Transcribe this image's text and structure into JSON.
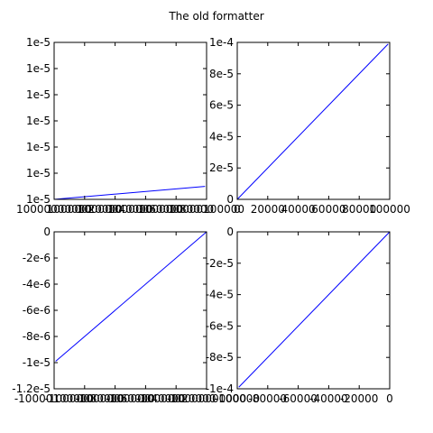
{
  "title": "The old formatter",
  "chart_data": [
    {
      "type": "line",
      "color": "#0000ff",
      "x": [
        10000000000,
        10000099000
      ],
      "values": [
        1e-05,
        1.0000099e-05
      ],
      "xlim": [
        10000000000,
        10000100000
      ],
      "xticks": [
        10000000000,
        10000020000,
        10000040000,
        10000060000,
        10000080000,
        10000100000
      ],
      "ylim": [
        1e-05,
        1.00012e-05
      ],
      "yticks": [
        {
          "value": 1e-05,
          "label": "1e-5"
        },
        {
          "value": 1.00002e-05,
          "label": "1e-5"
        },
        {
          "value": 1.00004e-05,
          "label": "1e-5"
        },
        {
          "value": 1.00006e-05,
          "label": "1e-5"
        },
        {
          "value": 1.00008e-05,
          "label": "1e-5"
        },
        {
          "value": 1.0001e-05,
          "label": "1e-5"
        },
        {
          "value": 1.00012e-05,
          "label": "1e-5"
        }
      ]
    },
    {
      "type": "line",
      "color": "#0000ff",
      "x": [
        0,
        99000
      ],
      "values": [
        0,
        9.9e-05
      ],
      "xlim": [
        0,
        100000
      ],
      "xticks": [
        0,
        20000,
        40000,
        60000,
        80000,
        100000
      ],
      "ylim": [
        0,
        0.0001
      ],
      "yticks": [
        0,
        {
          "value": 2e-05,
          "label": "2e-5"
        },
        {
          "value": 4e-05,
          "label": "4e-5"
        },
        {
          "value": 6e-05,
          "label": "6e-5"
        },
        {
          "value": 8e-05,
          "label": "8e-5"
        },
        {
          "value": 0.0001,
          "label": "1e-4"
        }
      ]
    },
    {
      "type": "line",
      "color": "#0000ff",
      "x": [
        -10000000000,
        -10000099000
      ],
      "values": [
        -1e-10,
        -9.9e-06
      ],
      "xlim": [
        -10000100000,
        -10000000000
      ],
      "xticks": [
        -10000100000,
        -10000080000,
        -10000060000,
        -10000040000,
        -10000020000,
        -10000000000
      ],
      "ylim": [
        -1.2e-05,
        0
      ],
      "yticks": [
        {
          "value": -1.2e-05,
          "label": "-1.2e-5"
        },
        {
          "value": -1e-05,
          "label": "-1e-5"
        },
        {
          "value": -8e-06,
          "label": "-8e-6"
        },
        {
          "value": -6e-06,
          "label": "-6e-6"
        },
        {
          "value": -4e-06,
          "label": "-4e-6"
        },
        {
          "value": -2e-06,
          "label": "-2e-6"
        },
        0
      ]
    },
    {
      "type": "line",
      "color": "#0000ff",
      "x": [
        0,
        -99000
      ],
      "values": [
        0,
        -9.9e-05
      ],
      "xlim": [
        -100000,
        0
      ],
      "xticks": [
        -100000,
        -80000,
        -60000,
        -40000,
        -20000,
        0
      ],
      "ylim": [
        -0.0001,
        0
      ],
      "yticks": [
        {
          "value": -0.0001,
          "label": "-1e-4"
        },
        {
          "value": -8e-05,
          "label": "-8e-5"
        },
        {
          "value": -6e-05,
          "label": "-6e-5"
        },
        {
          "value": -4e-05,
          "label": "-4e-5"
        },
        {
          "value": -2e-05,
          "label": "-2e-5"
        },
        0
      ]
    }
  ]
}
